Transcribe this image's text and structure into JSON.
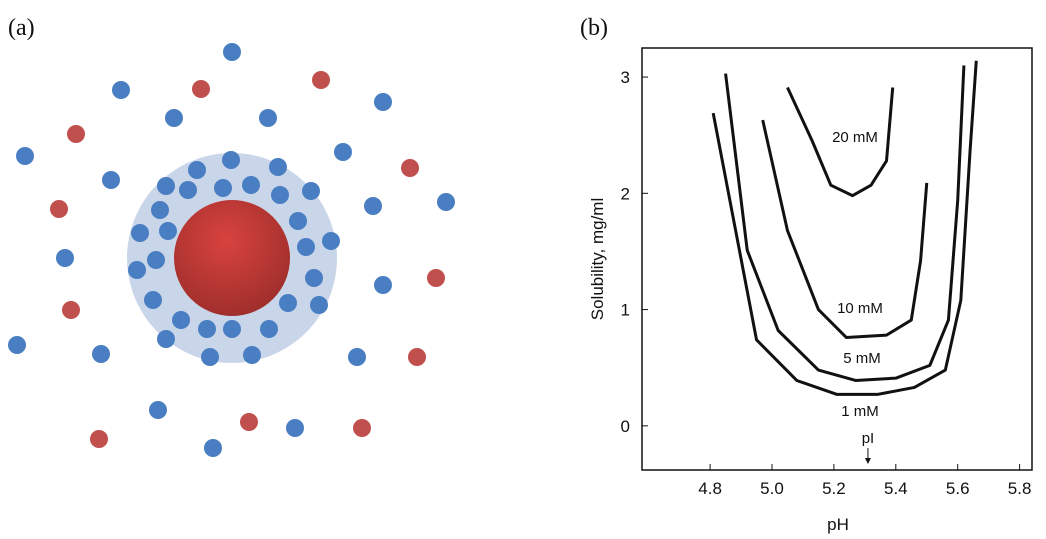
{
  "panel_labels": [
    "(a)",
    "(b)"
  ],
  "chart_data": {
    "type": "line",
    "xlabel": "pH",
    "ylabel": "Solubility, mg/ml",
    "xlim": [
      4.58,
      5.84
    ],
    "ylim": [
      -0.38,
      3.25
    ],
    "xticks": [
      4.8,
      {
        "value": 5,
        "label": "5.0"
      },
      5.2,
      5.4,
      5.6,
      5.8
    ],
    "yticks": [
      0,
      1,
      2,
      3
    ],
    "series": [
      {
        "name": "1 mM",
        "color": "#111111",
        "x": [
          4.81,
          4.95,
          5.08,
          5.21,
          5.34,
          5.46,
          5.56,
          5.61,
          5.64,
          5.66
        ],
        "values": [
          2.69,
          0.74,
          0.39,
          0.27,
          0.27,
          0.33,
          0.48,
          1.08,
          2.37,
          3.14
        ]
      },
      {
        "name": "5 mM",
        "color": "#111111",
        "x": [
          4.85,
          4.92,
          5.02,
          5.15,
          5.27,
          5.4,
          5.51,
          5.57,
          5.6,
          5.62
        ],
        "values": [
          3.03,
          1.51,
          0.82,
          0.48,
          0.39,
          0.41,
          0.52,
          0.91,
          1.94,
          3.1
        ]
      },
      {
        "name": "10 mM",
        "color": "#111111",
        "x": [
          4.97,
          5.05,
          5.15,
          5.24,
          5.37,
          5.45,
          5.48,
          5.5
        ],
        "values": [
          2.63,
          1.68,
          1.0,
          0.76,
          0.78,
          0.91,
          1.42,
          2.09
        ]
      },
      {
        "name": "20 mM",
        "color": "#111111",
        "x": [
          5.05,
          5.13,
          5.19,
          5.26,
          5.32,
          5.37,
          5.39
        ],
        "values": [
          2.91,
          2.45,
          2.07,
          1.98,
          2.07,
          2.28,
          2.91
        ]
      }
    ],
    "annotation": {
      "text": "pI",
      "x": 5.31
    }
  }
}
